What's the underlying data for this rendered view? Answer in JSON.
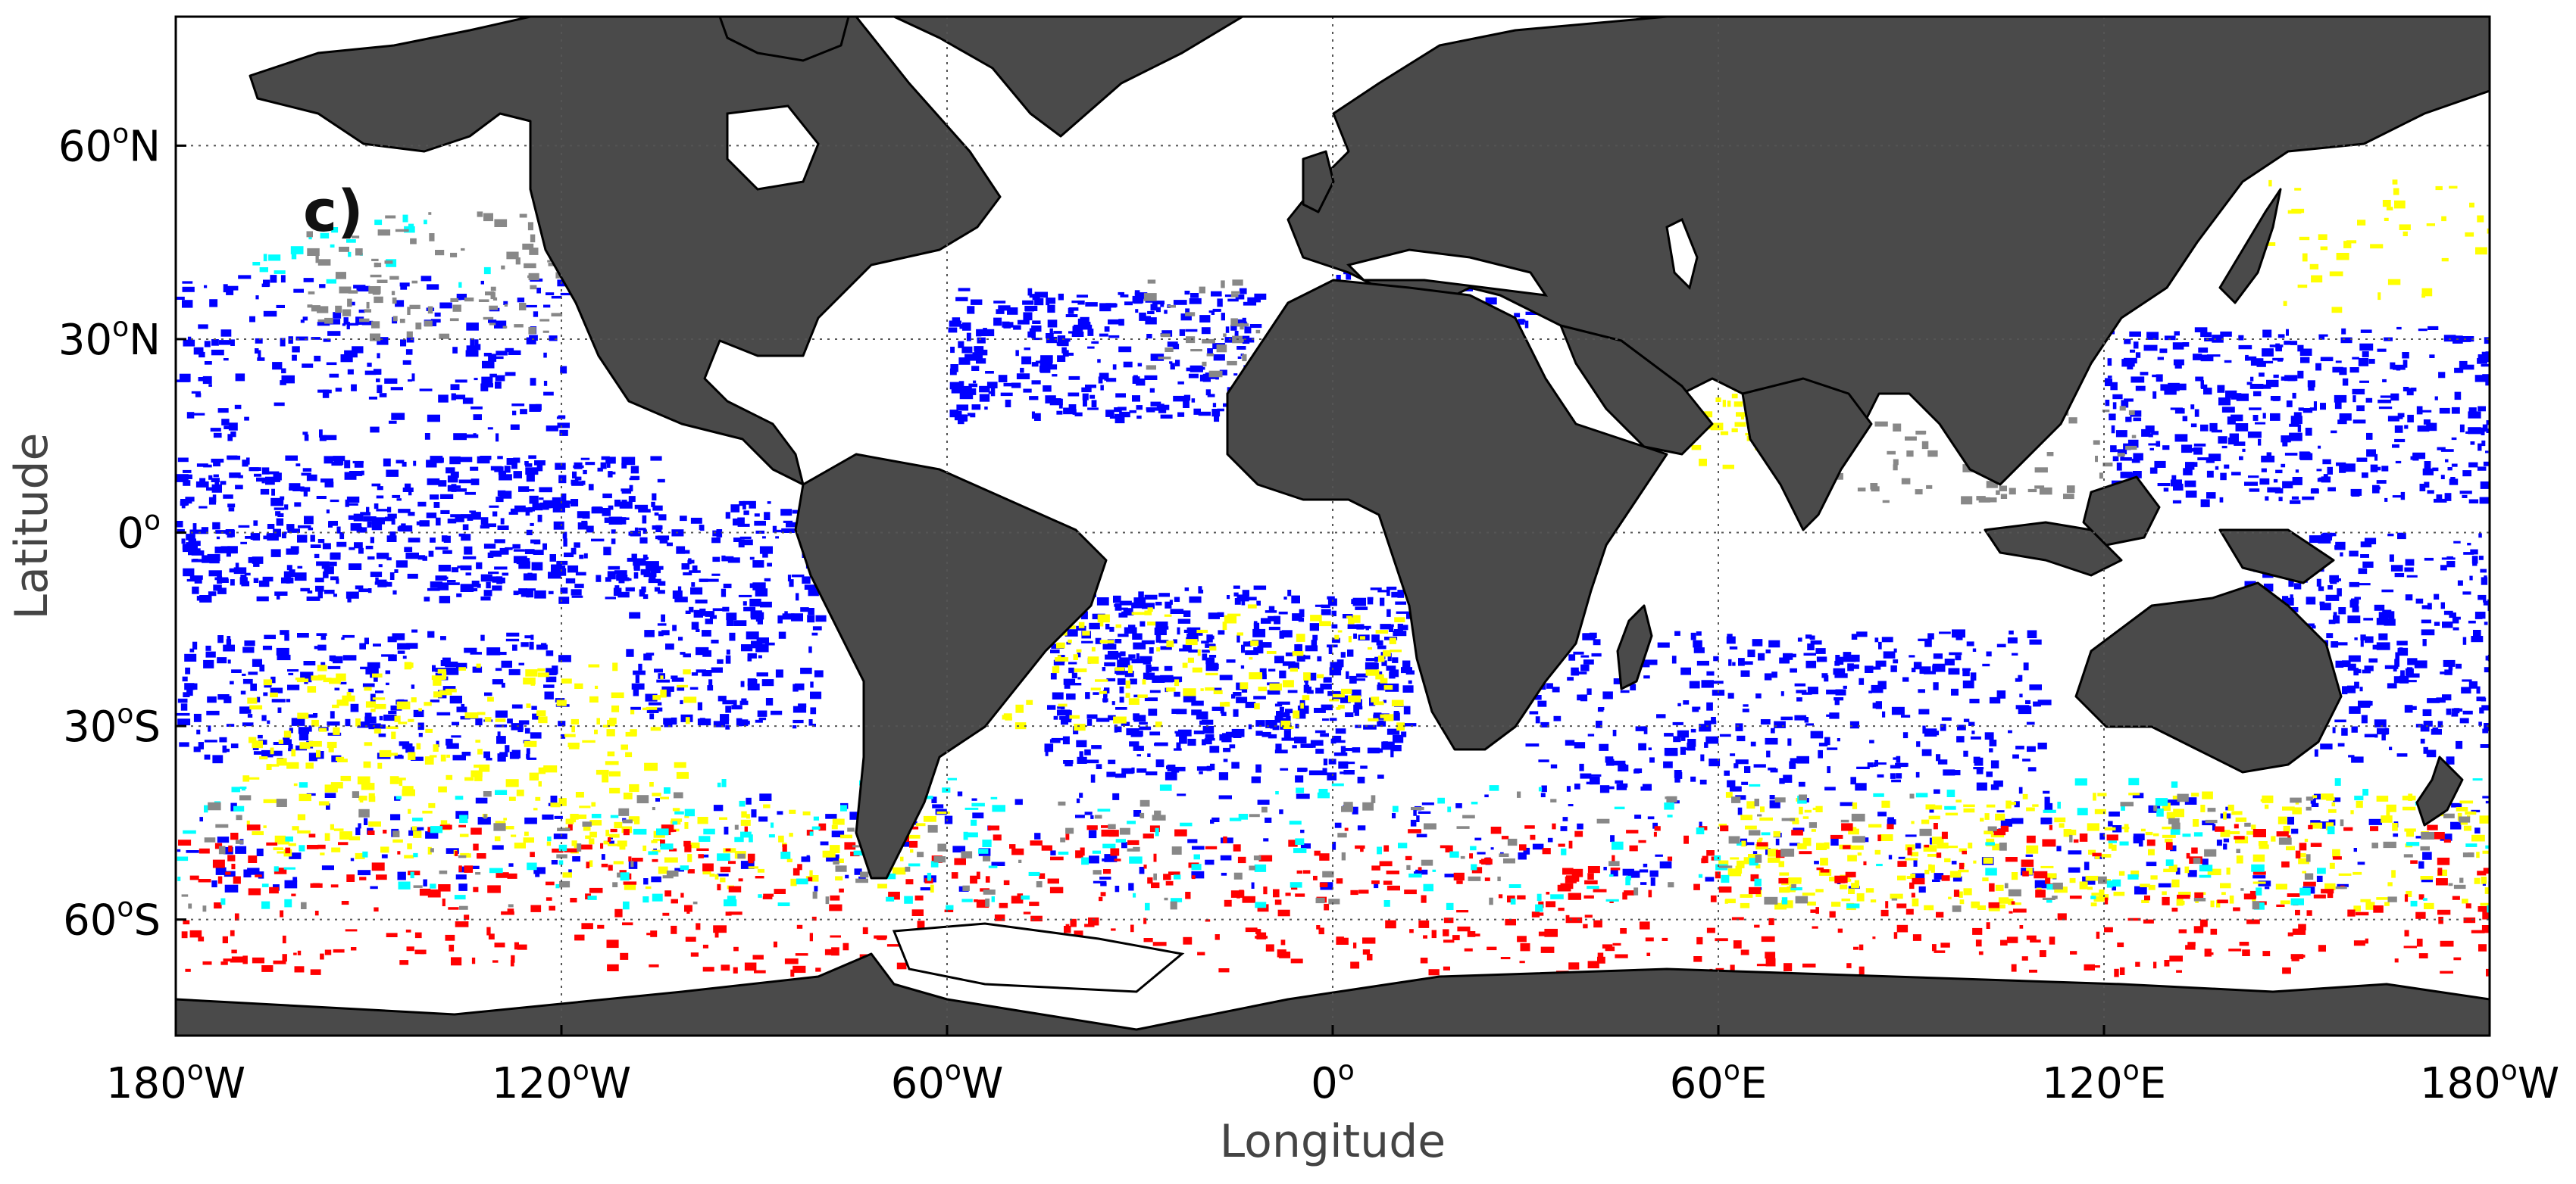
{
  "panel_label": "c)",
  "axes": {
    "xlabel": "Longitude",
    "ylabel": "Latitude",
    "xlim": [
      -180,
      180
    ],
    "ylim": [
      -78,
      80
    ],
    "grid": true,
    "grid_style": "dotted",
    "xticks": [
      {
        "value": -180,
        "num": "180",
        "hemi": "W"
      },
      {
        "value": -120,
        "num": "120",
        "hemi": "W"
      },
      {
        "value": -60,
        "num": "60",
        "hemi": "W"
      },
      {
        "value": 0,
        "num": "0",
        "hemi": ""
      },
      {
        "value": 60,
        "num": "60",
        "hemi": "E"
      },
      {
        "value": 120,
        "num": "120",
        "hemi": "E"
      },
      {
        "value": 180,
        "num": "180",
        "hemi": "W"
      }
    ],
    "yticks": [
      {
        "value": 60,
        "num": "60",
        "hemi": "N"
      },
      {
        "value": 30,
        "num": "30",
        "hemi": "N"
      },
      {
        "value": 0,
        "num": "0",
        "hemi": ""
      },
      {
        "value": -30,
        "num": "30",
        "hemi": "S"
      },
      {
        "value": -60,
        "num": "60",
        "hemi": "S"
      }
    ]
  },
  "colors": {
    "land": "#4a4a4a",
    "coast": "#000000",
    "ocean_missing": "#ffffff",
    "class_blue": "#0000ff",
    "class_yellow": "#ffff00",
    "class_red": "#ff0000",
    "class_cyan": "#00ffff",
    "class_gray": "#888888",
    "grid": "#555555"
  },
  "regions": [
    {
      "cls": "blue",
      "lon": [
        -180,
        -105
      ],
      "lat": [
        -10,
        12
      ],
      "density": 0.85
    },
    {
      "cls": "blue",
      "lon": [
        -110,
        -80
      ],
      "lat": [
        -30,
        5
      ],
      "density": 0.6
    },
    {
      "cls": "blue",
      "lon": [
        -180,
        -120
      ],
      "lat": [
        -35,
        -15
      ],
      "density": 0.55
    },
    {
      "cls": "blue",
      "lon": [
        -60,
        -12
      ],
      "lat": [
        18,
        38
      ],
      "density": 0.8
    },
    {
      "cls": "blue",
      "lon": [
        -45,
        12
      ],
      "lat": [
        -38,
        -8
      ],
      "density": 0.75
    },
    {
      "cls": "blue",
      "lon": [
        120,
        180
      ],
      "lat": [
        5,
        32
      ],
      "density": 0.6
    },
    {
      "cls": "blue",
      "lon": [
        140,
        180
      ],
      "lat": [
        -35,
        0
      ],
      "density": 0.55
    },
    {
      "cls": "blue",
      "lon": [
        30,
        110
      ],
      "lat": [
        -40,
        -15
      ],
      "density": 0.45
    },
    {
      "cls": "blue",
      "lon": [
        -180,
        -120
      ],
      "lat": [
        15,
        40
      ],
      "density": 0.35
    },
    {
      "cls": "blue",
      "lon": [
        0,
        40
      ],
      "lat": [
        32,
        42
      ],
      "density": 0.4
    },
    {
      "cls": "blue",
      "lon": [
        -180,
        180
      ],
      "lat": [
        -55,
        -40
      ],
      "density": 0.15
    },
    {
      "cls": "yellow",
      "lon": [
        -170,
        -100
      ],
      "lat": [
        -50,
        -20
      ],
      "density": 0.3
    },
    {
      "cls": "yellow",
      "lon": [
        -60,
        10
      ],
      "lat": [
        -30,
        -10
      ],
      "density": 0.25
    },
    {
      "cls": "yellow",
      "lon": [
        60,
        180
      ],
      "lat": [
        -58,
        -40
      ],
      "density": 0.35
    },
    {
      "cls": "yellow",
      "lon": [
        -120,
        -60
      ],
      "lat": [
        -55,
        -42
      ],
      "density": 0.25
    },
    {
      "cls": "yellow",
      "lon": [
        55,
        72
      ],
      "lat": [
        10,
        25
      ],
      "density": 0.5
    },
    {
      "cls": "yellow",
      "lon": [
        145,
        180
      ],
      "lat": [
        35,
        55
      ],
      "density": 0.15
    },
    {
      "cls": "red",
      "lon": [
        -180,
        180
      ],
      "lat": [
        -68,
        -45
      ],
      "density": 0.22
    },
    {
      "cls": "cyan",
      "lon": [
        -180,
        180
      ],
      "lat": [
        -58,
        -38
      ],
      "density": 0.08
    },
    {
      "cls": "cyan",
      "lon": [
        -170,
        -130
      ],
      "lat": [
        38,
        50
      ],
      "density": 0.12
    },
    {
      "cls": "gray",
      "lon": [
        -160,
        -120
      ],
      "lat": [
        30,
        50
      ],
      "density": 0.3
    },
    {
      "cls": "gray",
      "lon": [
        -30,
        -10
      ],
      "lat": [
        25,
        40
      ],
      "density": 0.25
    },
    {
      "cls": "gray",
      "lon": [
        75,
        125
      ],
      "lat": [
        5,
        20
      ],
      "density": 0.25
    },
    {
      "cls": "gray",
      "lon": [
        -180,
        180
      ],
      "lat": [
        -58,
        -40
      ],
      "density": 0.07
    }
  ]
}
